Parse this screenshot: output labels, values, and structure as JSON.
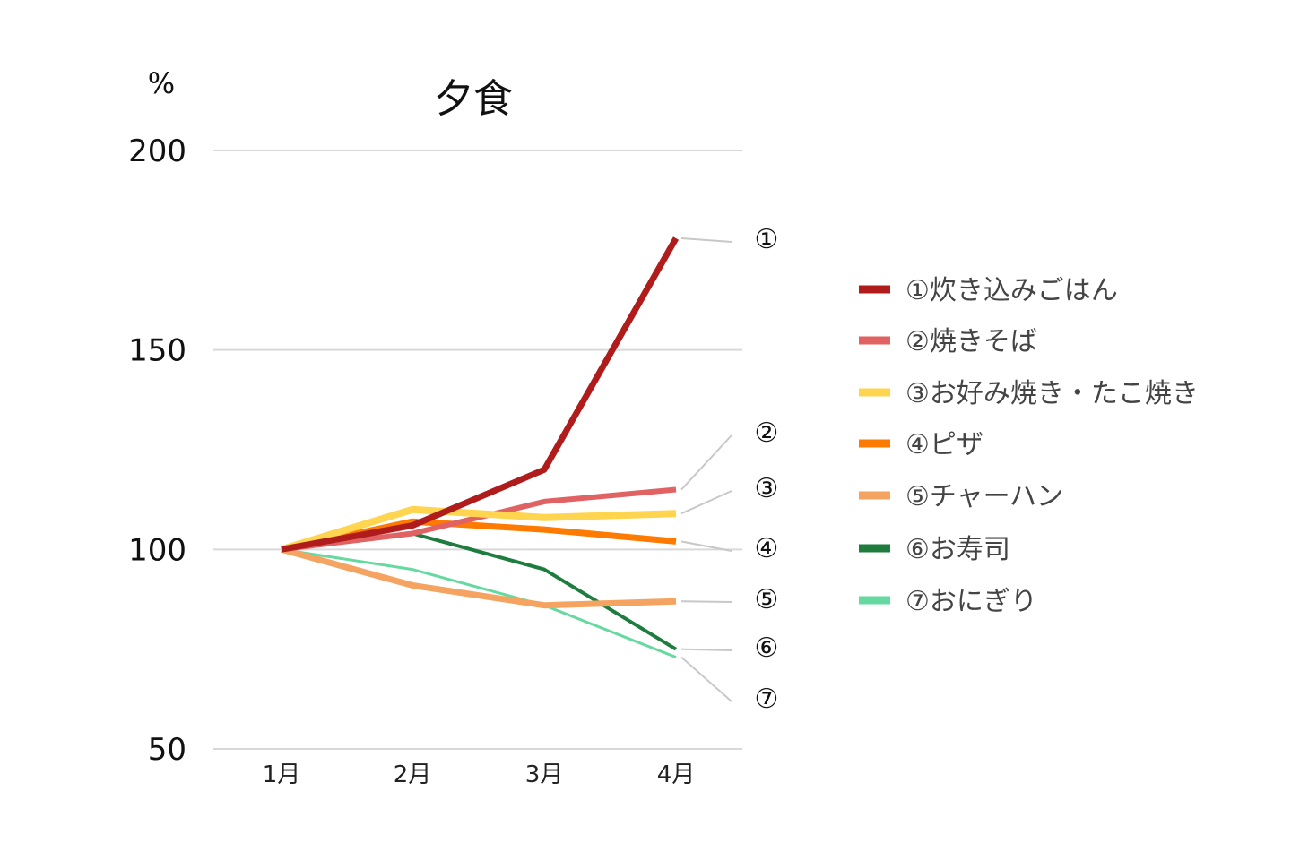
{
  "chart_data": {
    "type": "line",
    "title": "夕食",
    "ylabel": "%",
    "xlabel": "",
    "categories": [
      "1月",
      "2月",
      "3月",
      "4月"
    ],
    "ylim": [
      50,
      200
    ],
    "yticks": [
      "50",
      "100",
      "150",
      "200"
    ],
    "grid": true,
    "legend_position": "right",
    "series": [
      {
        "name": "①炊き込みごはん",
        "end_label": "①",
        "color": "#b01c1c",
        "values": [
          100,
          106,
          120,
          178
        ]
      },
      {
        "name": "②焼きそば",
        "end_label": "②",
        "color": "#e06262",
        "values": [
          100,
          104,
          112,
          115
        ]
      },
      {
        "name": "③お好み焼き・たこ焼き",
        "end_label": "③",
        "color": "#ffd54f",
        "values": [
          100,
          110,
          108,
          109
        ]
      },
      {
        "name": "④ピザ",
        "end_label": "④",
        "color": "#ff7a00",
        "values": [
          100,
          107,
          105,
          102
        ]
      },
      {
        "name": "⑤チャーハン",
        "end_label": "⑤",
        "color": "#f4a460",
        "values": [
          100,
          91,
          86,
          87
        ]
      },
      {
        "name": "⑥お寿司",
        "end_label": "⑥",
        "color": "#1e7d3e",
        "values": [
          100,
          104,
          95,
          75
        ]
      },
      {
        "name": "⑦おにぎり",
        "end_label": "⑦",
        "color": "#66d9a0",
        "values": [
          100,
          95,
          86,
          73
        ]
      }
    ]
  }
}
